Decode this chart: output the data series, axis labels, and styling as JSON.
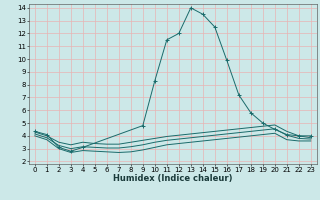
{
  "xlabel": "Humidex (Indice chaleur)",
  "bg_color": "#cce8e8",
  "line_color": "#1a6b6b",
  "grid_color": "#e8b4b4",
  "xlim": [
    -0.5,
    23.5
  ],
  "ylim": [
    1.8,
    14.3
  ],
  "xticks": [
    0,
    1,
    2,
    3,
    4,
    5,
    6,
    7,
    8,
    9,
    10,
    11,
    12,
    13,
    14,
    15,
    16,
    17,
    18,
    19,
    20,
    21,
    22,
    23
  ],
  "yticks": [
    2,
    3,
    4,
    5,
    6,
    7,
    8,
    9,
    10,
    11,
    12,
    13,
    14
  ],
  "lines": [
    {
      "x": [
        0,
        1,
        2,
        3,
        4,
        9,
        10,
        11,
        12,
        13,
        14,
        15,
        16,
        17,
        18,
        19,
        20,
        21,
        22,
        23
      ],
      "y": [
        4.35,
        4.1,
        3.1,
        2.8,
        3.1,
        4.8,
        8.3,
        11.5,
        12.0,
        14.0,
        13.5,
        12.5,
        9.9,
        7.2,
        5.8,
        5.0,
        4.5,
        4.1,
        4.0,
        4.0
      ],
      "marker": "+"
    },
    {
      "x": [
        0,
        1,
        2,
        3,
        4,
        5,
        6,
        7,
        8,
        9,
        10,
        11,
        12,
        13,
        14,
        15,
        16,
        17,
        18,
        19,
        20,
        21,
        22,
        23
      ],
      "y": [
        4.3,
        4.0,
        3.5,
        3.3,
        3.5,
        3.4,
        3.35,
        3.35,
        3.5,
        3.65,
        3.8,
        3.95,
        4.05,
        4.15,
        4.25,
        4.35,
        4.45,
        4.55,
        4.65,
        4.75,
        4.85,
        4.35,
        4.0,
        3.85
      ],
      "marker": null
    },
    {
      "x": [
        0,
        1,
        2,
        3,
        4,
        5,
        6,
        7,
        8,
        9,
        10,
        11,
        12,
        13,
        14,
        15,
        16,
        17,
        18,
        19,
        20,
        21,
        22,
        23
      ],
      "y": [
        4.15,
        3.85,
        3.25,
        3.0,
        3.15,
        3.1,
        3.05,
        3.05,
        3.15,
        3.3,
        3.5,
        3.65,
        3.75,
        3.85,
        3.95,
        4.05,
        4.15,
        4.25,
        4.35,
        4.45,
        4.55,
        4.05,
        3.8,
        3.75
      ],
      "marker": null
    },
    {
      "x": [
        0,
        1,
        2,
        3,
        4,
        5,
        6,
        7,
        8,
        9,
        10,
        11,
        12,
        13,
        14,
        15,
        16,
        17,
        18,
        19,
        20,
        21,
        22,
        23
      ],
      "y": [
        4.0,
        3.7,
        3.0,
        2.7,
        2.85,
        2.8,
        2.75,
        2.7,
        2.75,
        2.9,
        3.1,
        3.3,
        3.4,
        3.5,
        3.6,
        3.7,
        3.8,
        3.9,
        4.0,
        4.1,
        4.2,
        3.7,
        3.6,
        3.6
      ],
      "marker": null
    }
  ],
  "xlabel_fontsize": 6.0,
  "tick_fontsize": 5.0
}
